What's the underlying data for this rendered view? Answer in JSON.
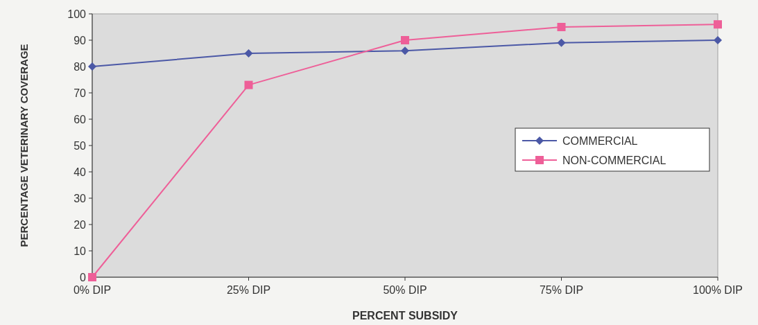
{
  "chart_data": {
    "type": "line",
    "xlabel": "PERCENT SUBSIDY",
    "ylabel": "PERCENTAGE VETERINARY COVERAGE",
    "categories": [
      "0% DIP",
      "25% DIP",
      "50% DIP",
      "75% DIP",
      "100% DIP"
    ],
    "series": [
      {
        "name": "COMMERCIAL",
        "color": "#4b58a6",
        "marker": "diamond",
        "values": [
          80,
          85,
          86,
          89,
          90
        ]
      },
      {
        "name": "NON-COMMERCIAL",
        "color": "#ee5f98",
        "marker": "square",
        "values": [
          0,
          73,
          90,
          95,
          96
        ]
      }
    ],
    "ylim": [
      0,
      100
    ],
    "yticks": [
      0,
      10,
      20,
      30,
      40,
      50,
      60,
      70,
      80,
      90,
      100
    ],
    "grid": false,
    "legend": "right",
    "line_style": "solid"
  }
}
